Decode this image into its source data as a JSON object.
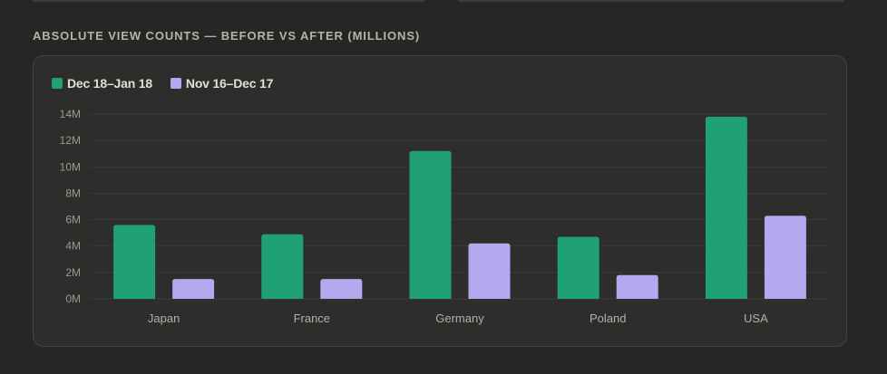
{
  "section": {
    "title": "ABSOLUTE VIEW COUNTS — BEFORE VS AFTER (MILLIONS)"
  },
  "colors": {
    "after": "#1fa173",
    "before": "#b3a9ef",
    "grid": "#3b3b38",
    "axis_text": "#9d9a92"
  },
  "chart_data": {
    "type": "bar",
    "categories": [
      "Japan",
      "France",
      "Germany",
      "Poland",
      "USA"
    ],
    "series": [
      {
        "name": "Dec 18–Jan 18",
        "color": "#1fa173",
        "values": [
          5.6,
          4.9,
          11.2,
          4.7,
          13.8
        ]
      },
      {
        "name": "Nov 16–Dec 17",
        "color": "#b3a9ef",
        "values": [
          1.5,
          1.5,
          4.2,
          1.8,
          6.3
        ]
      }
    ],
    "y_ticks": [
      "0M",
      "2M",
      "4M",
      "6M",
      "8M",
      "10M",
      "12M",
      "14M"
    ],
    "ylim": [
      0,
      14
    ],
    "grid": true,
    "legend_position": "top-left"
  }
}
